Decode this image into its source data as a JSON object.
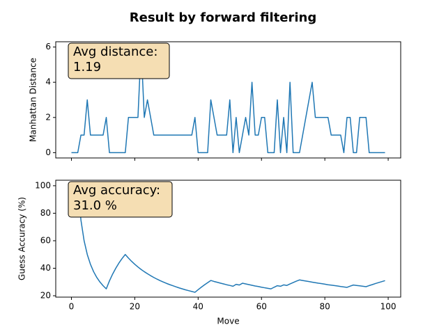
{
  "chart_data": [
    {
      "type": "line",
      "title": "Result by forward filtering",
      "ylabel": "Manhattan Distance",
      "annotation": [
        "Avg distance:",
        "1.19"
      ],
      "color": "#1f77b4",
      "x": [
        0,
        1,
        2,
        3,
        4,
        5,
        6,
        7,
        8,
        9,
        10,
        11,
        12,
        13,
        14,
        15,
        16,
        17,
        18,
        19,
        20,
        21,
        22,
        23,
        24,
        25,
        26,
        27,
        28,
        29,
        30,
        31,
        32,
        33,
        34,
        35,
        36,
        37,
        38,
        39,
        40,
        41,
        42,
        43,
        44,
        45,
        46,
        47,
        48,
        49,
        50,
        51,
        52,
        53,
        54,
        55,
        56,
        57,
        58,
        59,
        60,
        61,
        62,
        63,
        64,
        65,
        66,
        67,
        68,
        69,
        70,
        71,
        72,
        73,
        74,
        75,
        76,
        77,
        78,
        79,
        80,
        81,
        82,
        83,
        84,
        85,
        86,
        87,
        88,
        89,
        90,
        91,
        92,
        93,
        94,
        95,
        96,
        97,
        98,
        99
      ],
      "values": [
        0,
        0,
        0,
        1,
        1,
        3,
        1,
        1,
        1,
        1,
        1,
        2,
        0,
        0,
        0,
        0,
        0,
        0,
        2,
        2,
        2,
        2,
        6,
        2,
        3,
        2,
        1,
        1,
        1,
        1,
        1,
        1,
        1,
        1,
        1,
        1,
        1,
        1,
        1,
        2,
        0,
        0,
        0,
        0,
        3,
        2,
        1,
        1,
        1,
        1,
        3,
        0,
        2,
        0,
        1,
        2,
        1,
        4,
        1,
        1,
        2,
        2,
        0,
        0,
        0,
        3,
        0,
        2,
        0,
        4,
        0,
        0,
        0,
        1,
        2,
        3,
        4,
        2,
        2,
        2,
        2,
        2,
        1,
        1,
        1,
        1,
        0,
        2,
        2,
        0,
        0,
        2,
        2,
        2,
        0,
        0,
        0,
        0,
        0,
        0
      ],
      "xlim": [
        -4.95,
        103.95
      ],
      "xticks": [
        0,
        20,
        40,
        60,
        80,
        100
      ],
      "ylim": [
        -0.3,
        6.3
      ],
      "yticks": [
        0,
        2,
        4,
        6
      ]
    },
    {
      "type": "line",
      "ylabel": "Guess Accuracy (%)",
      "xlabel": "Move",
      "annotation": [
        "Avg accuracy:",
        "31.0 %"
      ],
      "color": "#1f77b4",
      "x": [
        0,
        1,
        2,
        3,
        4,
        5,
        6,
        7,
        8,
        9,
        10,
        11,
        12,
        13,
        14,
        15,
        16,
        17,
        18,
        19,
        20,
        21,
        22,
        23,
        24,
        25,
        26,
        27,
        28,
        29,
        30,
        31,
        32,
        33,
        34,
        35,
        36,
        37,
        38,
        39,
        40,
        41,
        42,
        43,
        44,
        45,
        46,
        47,
        48,
        49,
        50,
        51,
        52,
        53,
        54,
        55,
        56,
        57,
        58,
        59,
        60,
        61,
        62,
        63,
        64,
        65,
        66,
        67,
        68,
        69,
        70,
        71,
        72,
        73,
        74,
        75,
        76,
        77,
        78,
        79,
        80,
        81,
        82,
        83,
        84,
        85,
        86,
        87,
        88,
        89,
        90,
        91,
        92,
        93,
        94,
        95,
        96,
        97,
        98,
        99
      ],
      "values": [
        100,
        100,
        100,
        75,
        60,
        50,
        42.9,
        37.5,
        33.3,
        30,
        27.3,
        25,
        30.8,
        35.7,
        40,
        43.8,
        47.1,
        50,
        47.4,
        45,
        42.9,
        40.9,
        39.1,
        37.5,
        36,
        34.6,
        33.3,
        32.1,
        31,
        30,
        29,
        28.1,
        27.3,
        26.5,
        25.7,
        25,
        24.3,
        23.7,
        23.1,
        22.5,
        24.4,
        26.2,
        27.9,
        29.5,
        31.1,
        30.4,
        29.8,
        29.2,
        28.6,
        28,
        27.5,
        26.9,
        28.3,
        27.8,
        29.1,
        28.6,
        28.1,
        27.6,
        27.1,
        26.7,
        26.2,
        25.8,
        25.4,
        25,
        26.2,
        27.3,
        26.9,
        27.9,
        27.5,
        28.6,
        29.6,
        30.6,
        31.5,
        31.1,
        30.7,
        30.3,
        29.9,
        29.5,
        29.1,
        28.8,
        28.4,
        28,
        27.7,
        27.4,
        27.1,
        26.7,
        26.4,
        26.1,
        27,
        27.8,
        27.5,
        27.2,
        26.9,
        26.6,
        27.4,
        28.1,
        28.9,
        29.6,
        30.3,
        31
      ],
      "xlim": [
        -4.95,
        103.95
      ],
      "xticks": [
        0,
        20,
        40,
        60,
        80,
        100
      ],
      "ylim": [
        19,
        104
      ],
      "yticks": [
        20,
        40,
        60,
        80,
        100
      ]
    }
  ]
}
